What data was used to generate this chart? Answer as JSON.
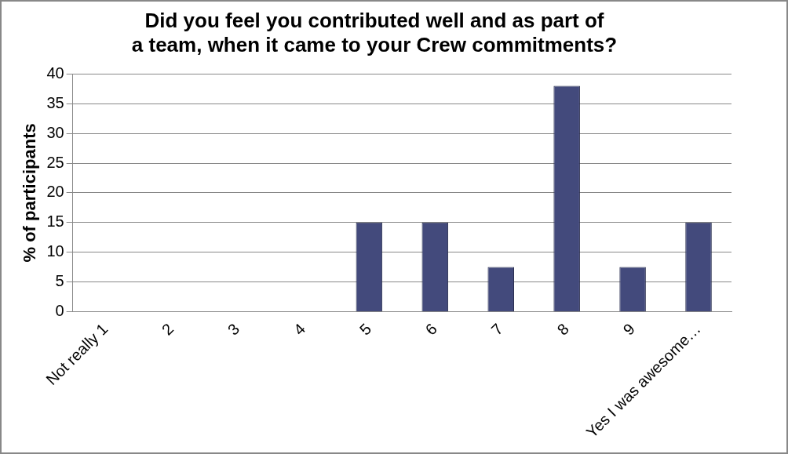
{
  "chart_data": {
    "type": "bar",
    "title": "Did you feel you contributed well and as part of a team, when it came to your Crew commitments?",
    "ylabel": "% of participants",
    "categories": [
      "Not really 1",
      "2",
      "3",
      "4",
      "5",
      "6",
      "7",
      "8",
      "9",
      "Yes I was awesome…"
    ],
    "values": [
      0,
      0,
      0,
      0,
      15,
      15,
      7.5,
      38,
      7.5,
      15
    ],
    "color": "#434a7c",
    "ylim": [
      0,
      40
    ],
    "yticks": [
      0,
      5,
      10,
      15,
      20,
      25,
      30,
      35,
      40
    ],
    "grid": "y",
    "legend": false
  }
}
